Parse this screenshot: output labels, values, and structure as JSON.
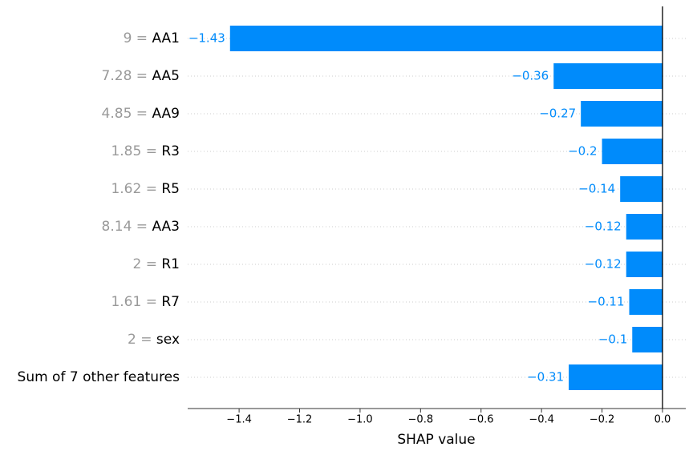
{
  "chart_data": {
    "type": "bar",
    "orientation": "horizontal",
    "x_label": "SHAP value",
    "categories": [
      "9 = AA1",
      "7.28 = AA5",
      "4.85 = AA9",
      "1.85 = R3",
      "1.62 = R5",
      "8.14 = AA3",
      "2 = R1",
      "1.61 = R7",
      "2 = sex",
      "Sum of 7 other features"
    ],
    "values": [
      -1.43,
      -0.36,
      -0.27,
      -0.2,
      -0.14,
      -0.12,
      -0.12,
      -0.11,
      -0.1,
      -0.31
    ],
    "value_labels": [
      "−1.43",
      "−0.36",
      "−0.27",
      "−0.2",
      "−0.14",
      "−0.12",
      "−0.12",
      "−0.11",
      "−0.1",
      "−0.31"
    ],
    "color": "#008bfb",
    "xlim": [
      -1.57,
      0.077
    ],
    "xticks": [
      {
        "value": -1.4,
        "label": "−1.4"
      },
      {
        "value": -1.2,
        "label": "−1.2"
      },
      {
        "value": -1.0,
        "label": "−1.0"
      },
      {
        "value": -0.8,
        "label": "−0.8"
      },
      {
        "value": -0.6,
        "label": "−0.6"
      },
      {
        "value": -0.4,
        "label": "−0.4"
      },
      {
        "value": -0.2,
        "label": "−0.2"
      },
      {
        "value": 0,
        "label": "0.0"
      }
    ]
  }
}
